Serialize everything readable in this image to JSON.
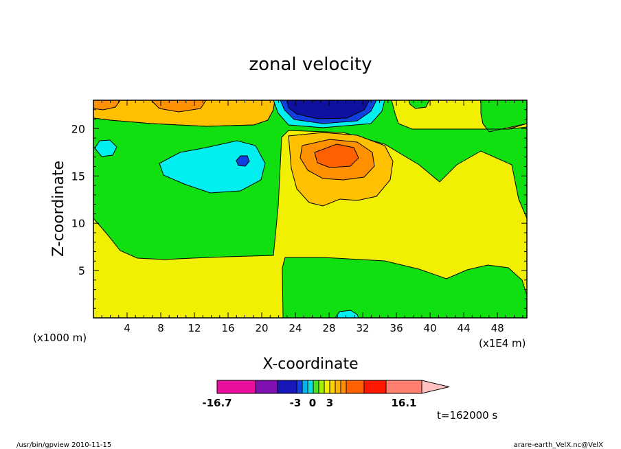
{
  "chart_data": {
    "type": "heatmap",
    "title": "zonal velocity",
    "xlabel": "X-coordinate",
    "ylabel": "Z-coordinate",
    "x_unit_left": "(x1000 m)",
    "x_unit_right": "(x1E4 m)",
    "xlim": [
      0,
      51.5
    ],
    "ylim": [
      0,
      23
    ],
    "x_ticks": [
      4,
      8,
      12,
      16,
      20,
      24,
      28,
      32,
      36,
      40,
      44,
      48
    ],
    "x_tick_labels": [
      "4",
      "8",
      "12",
      "16",
      "20",
      "24",
      "28",
      "32",
      "36",
      "40",
      "44",
      "48"
    ],
    "y_ticks": [
      5,
      10,
      15,
      20
    ],
    "y_tick_labels": [
      "5",
      "10",
      "15",
      "20"
    ],
    "colorbar": {
      "min_label": "-16.7",
      "mid_labels": [
        "-3",
        "0",
        "3"
      ],
      "max_label": "16.1",
      "colors": [
        "#e8109c",
        "#8010b0",
        "#1818b8",
        "#1440e0",
        "#00b4f0",
        "#10dcdc",
        "#48e020",
        "#a0f000",
        "#f0f000",
        "#ffd000",
        "#ffb000",
        "#ff9000",
        "#ff6000",
        "#ff1800",
        "#ff8070",
        "#ffc0c0"
      ]
    },
    "regions": [
      {
        "name": "yellow-background",
        "value": 1.5,
        "color": "#f0f000"
      },
      {
        "name": "green-mid-layer",
        "value": -1.5,
        "color": "#10e010"
      },
      {
        "name": "green-lower-right",
        "value": -1.5,
        "color": "#10e010"
      },
      {
        "name": "cyan-left-blob",
        "value": -4,
        "color": "#00f0f0"
      },
      {
        "name": "blue-small-core",
        "value": -7,
        "color": "#1040e0"
      },
      {
        "name": "orange-jet-core",
        "value": 7,
        "color": "#ff7000"
      },
      {
        "name": "navy-top-core",
        "value": -14,
        "color": "#1010a0"
      }
    ],
    "time_label": "t=162000 s"
  },
  "footer": {
    "left": "/usr/bin/gpview  2010-11-15",
    "right": "arare-earth_VelX.nc@VelX"
  }
}
